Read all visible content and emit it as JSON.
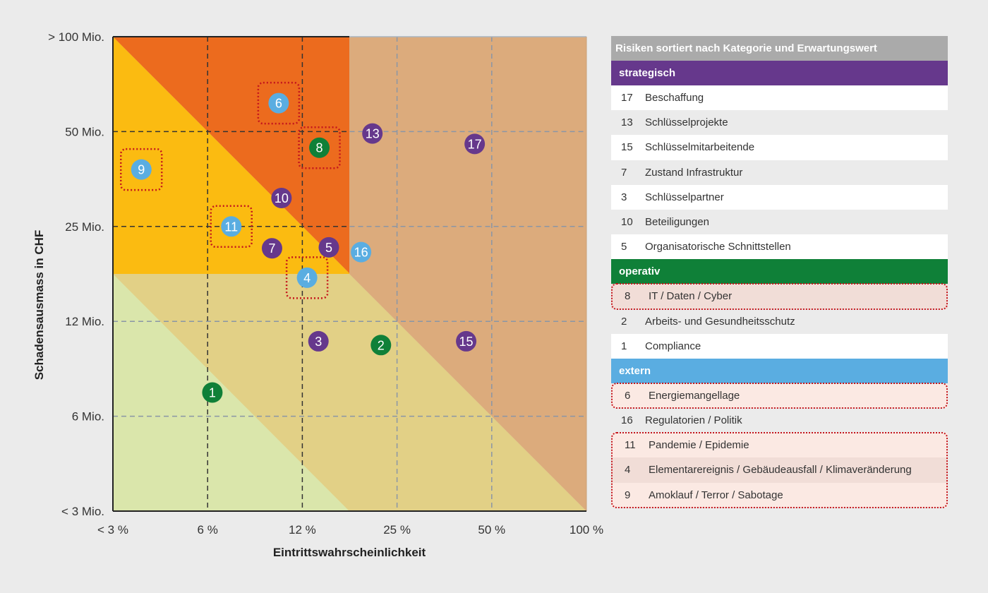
{
  "chart_data": {
    "type": "scatter",
    "title": "",
    "xlabel": "Eintrittswahrscheinlichkeit",
    "ylabel": "Schadensausmass in CHF",
    "x_ticks": [
      "< 3 %",
      "6 %",
      "12 %",
      "25 %",
      "50 %",
      "100 %"
    ],
    "y_ticks": [
      "< 3 Mio.",
      "6 Mio.",
      "12 Mio.",
      "25 Mio.",
      "50 Mio.",
      "> 100 Mio."
    ],
    "axis_note": "Logarithmic scale; values expressed as index on tick scale (0 = first tick, 5 = last tick)",
    "xlim": [
      0,
      5
    ],
    "ylim": [
      0,
      5
    ],
    "colors": {
      "strategisch": "#66388c",
      "operativ": "#0f8038",
      "extern": "#5aade1",
      "zone_high": "#ec6b1e",
      "zone_mid": "#fbbb11",
      "zone_high_light": "#dcab7c",
      "zone_mid_light": "#e2d086",
      "zone_low": "#dae6ab",
      "highlight_border": "#c4161c"
    },
    "points": [
      {
        "id": "1",
        "category": "operativ",
        "x": 1.05,
        "y": 1.25
      },
      {
        "id": "2",
        "category": "operativ",
        "x": 2.83,
        "y": 1.75
      },
      {
        "id": "3",
        "category": "strategisch",
        "x": 2.17,
        "y": 1.79
      },
      {
        "id": "4",
        "category": "extern",
        "x": 2.05,
        "y": 2.46,
        "highlighted": true
      },
      {
        "id": "5",
        "category": "strategisch",
        "x": 2.28,
        "y": 2.78
      },
      {
        "id": "6",
        "category": "extern",
        "x": 1.75,
        "y": 4.3,
        "highlighted": true
      },
      {
        "id": "7",
        "category": "strategisch",
        "x": 1.68,
        "y": 2.77
      },
      {
        "id": "8",
        "category": "operativ",
        "x": 2.18,
        "y": 3.83,
        "highlighted": true
      },
      {
        "id": "9",
        "category": "extern",
        "x": 0.3,
        "y": 3.6,
        "highlighted": true
      },
      {
        "id": "10",
        "category": "strategisch",
        "x": 1.78,
        "y": 3.3
      },
      {
        "id": "11",
        "category": "extern",
        "x": 1.25,
        "y": 3.0,
        "highlighted": true
      },
      {
        "id": "13",
        "category": "strategisch",
        "x": 2.74,
        "y": 3.98
      },
      {
        "id": "15",
        "category": "strategisch",
        "x": 3.73,
        "y": 1.79
      },
      {
        "id": "16",
        "category": "extern",
        "x": 2.62,
        "y": 2.73
      },
      {
        "id": "17",
        "category": "strategisch",
        "x": 3.82,
        "y": 3.87
      }
    ]
  },
  "legend": {
    "title": "Risiken sortiert nach Kategorie und Erwartungswert",
    "categories": [
      {
        "name": "strategisch",
        "items": [
          {
            "num": "17",
            "label": "Beschaffung"
          },
          {
            "num": "13",
            "label": "Schlüsselprojekte"
          },
          {
            "num": "15",
            "label": "Schlüsselmitarbeitende"
          },
          {
            "num": "7",
            "label": "Zustand Infrastruktur"
          },
          {
            "num": "3",
            "label": "Schlüsselpartner"
          },
          {
            "num": "10",
            "label": "Beteiligungen"
          },
          {
            "num": "5",
            "label": "Organisatorische Schnittstellen"
          }
        ]
      },
      {
        "name": "operativ",
        "items": [
          {
            "num": "8",
            "label": "IT / Daten / Cyber"
          },
          {
            "num": "2",
            "label": "Arbeits- und Gesundheitsschutz"
          },
          {
            "num": "1",
            "label": "Compliance"
          }
        ]
      },
      {
        "name": "extern",
        "items": [
          {
            "num": "6",
            "label": "Energiemangellage"
          },
          {
            "num": "16",
            "label": "Regulatorien / Politik"
          },
          {
            "num": "11",
            "label": "Pandemie / Epidemie"
          },
          {
            "num": "4",
            "label": "Elementarereignis / Gebäudeausfall / Klimaveränderung"
          },
          {
            "num": "9",
            "label": "Amoklauf / Terror / Sabotage"
          }
        ]
      }
    ]
  }
}
